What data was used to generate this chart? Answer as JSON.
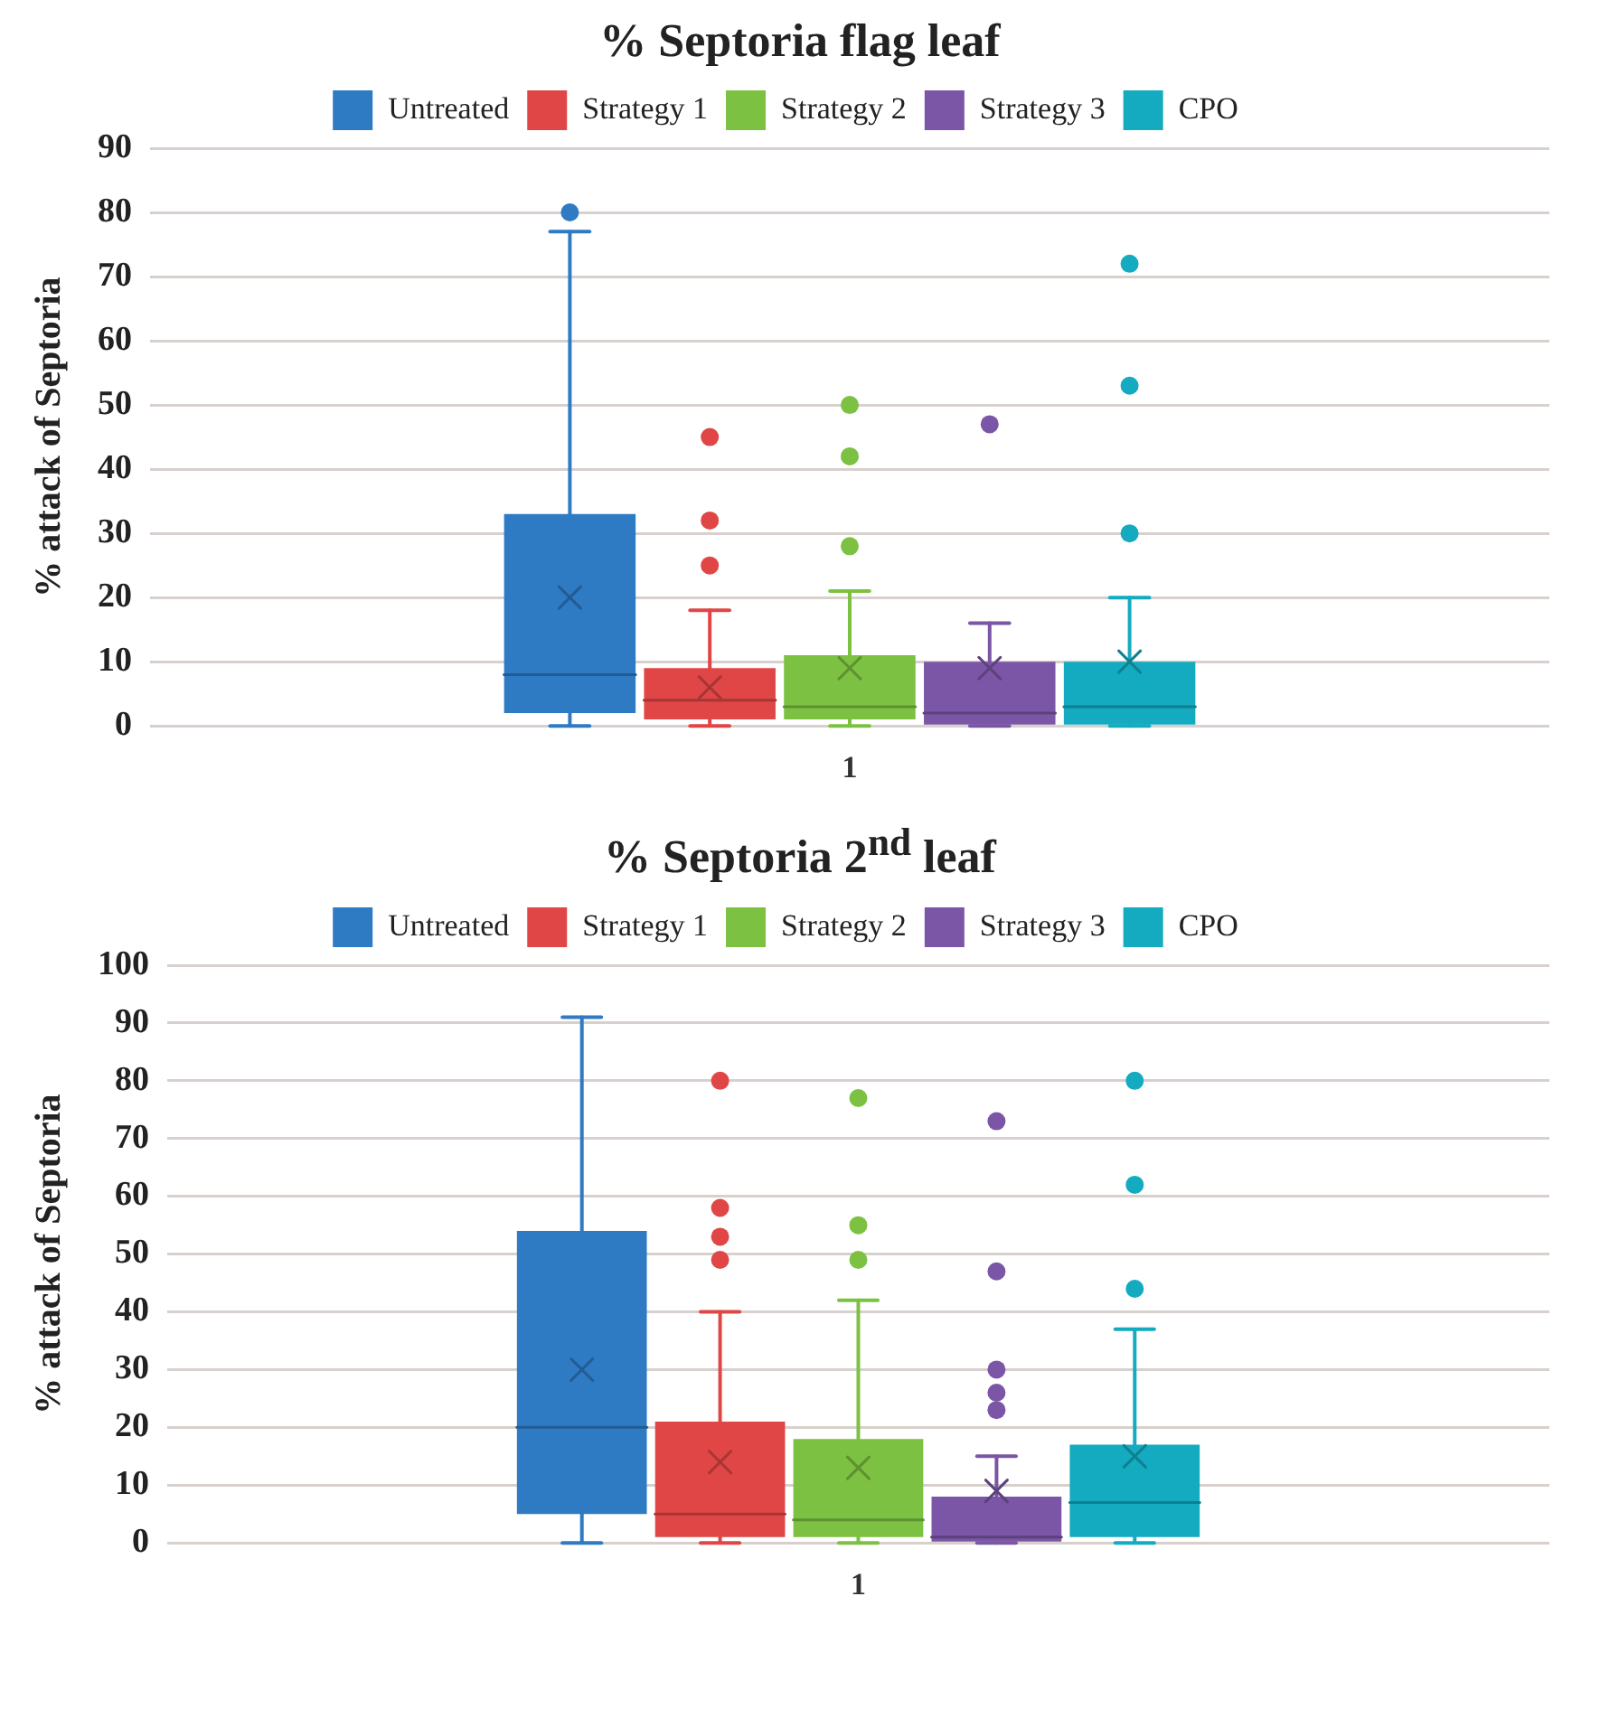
{
  "chart_data": [
    {
      "type": "box",
      "title": "% Septoria flag leaf",
      "ylabel": "% attack of Septoria",
      "categories": [
        "1"
      ],
      "ylim": [
        0,
        90
      ],
      "yticks": [
        0,
        10,
        20,
        30,
        40,
        50,
        60,
        70,
        80,
        90
      ],
      "grid": "y",
      "legend": "top",
      "series": [
        {
          "name": "Untreated",
          "color": "#2e7bc4",
          "boxes": [
            {
              "low": 0,
              "q1": 2,
              "median": 8,
              "q3": 33,
              "high": 77,
              "mean": 20,
              "outliers": [
                80
              ]
            }
          ]
        },
        {
          "name": "Strategy 1",
          "color": "#e04646",
          "boxes": [
            {
              "low": 0,
              "q1": 1,
              "median": 4,
              "q3": 9,
              "high": 18,
              "mean": 6,
              "outliers": [
                25,
                32,
                45
              ]
            }
          ]
        },
        {
          "name": "Strategy 2",
          "color": "#7cc142",
          "boxes": [
            {
              "low": 0,
              "q1": 1,
              "median": 3,
              "q3": 11,
              "high": 21,
              "mean": 9,
              "outliers": [
                28,
                42,
                50
              ]
            }
          ]
        },
        {
          "name": "Strategy 3",
          "color": "#7b56a6",
          "boxes": [
            {
              "low": 0,
              "q1": 0,
              "median": 2,
              "q3": 10,
              "high": 16,
              "mean": 9,
              "outliers": [
                47
              ]
            }
          ]
        },
        {
          "name": "CPO",
          "color": "#14abc0",
          "boxes": [
            {
              "low": 0,
              "q1": 0,
              "median": 3,
              "q3": 10,
              "high": 20,
              "mean": 10,
              "outliers": [
                30,
                53,
                72
              ]
            }
          ]
        }
      ]
    },
    {
      "type": "box",
      "title": "% Septoria 2$^{nd}$ leaf",
      "ylabel": "% attack of Septoria",
      "categories": [
        "1"
      ],
      "ylim": [
        0,
        100
      ],
      "yticks": [
        0,
        10,
        20,
        30,
        40,
        50,
        60,
        70,
        80,
        90,
        100
      ],
      "grid": "y",
      "legend": "top",
      "series": [
        {
          "name": "Untreated",
          "color": "#2e7bc4",
          "boxes": [
            {
              "low": 0,
              "q1": 5,
              "median": 20,
              "q3": 54,
              "high": 91,
              "mean": 30
            }
          ]
        },
        {
          "name": "Strategy 1",
          "color": "#e04646",
          "boxes": [
            {
              "low": 0,
              "q1": 1,
              "median": 5,
              "q3": 21,
              "high": 40,
              "mean": 14,
              "outliers": [
                49,
                53,
                58,
                80
              ]
            }
          ]
        },
        {
          "name": "Strategy 2",
          "color": "#7cc142",
          "boxes": [
            {
              "low": 0,
              "q1": 1,
              "median": 4,
              "q3": 18,
              "high": 42,
              "mean": 13,
              "outliers": [
                49,
                55,
                77
              ]
            }
          ]
        },
        {
          "name": "Strategy 3",
          "color": "#7b56a6",
          "boxes": [
            {
              "low": 0,
              "q1": 0,
              "median": 1,
              "q3": 8,
              "high": 15,
              "mean": 9,
              "outliers": [
                23,
                26,
                30,
                47,
                73
              ]
            }
          ]
        },
        {
          "name": "CPO",
          "color": "#14abc0",
          "boxes": [
            {
              "low": 0,
              "q1": 1,
              "median": 7,
              "q3": 17,
              "high": 37,
              "mean": 15,
              "outliers": [
                44,
                62,
                80
              ]
            }
          ]
        }
      ]
    }
  ]
}
